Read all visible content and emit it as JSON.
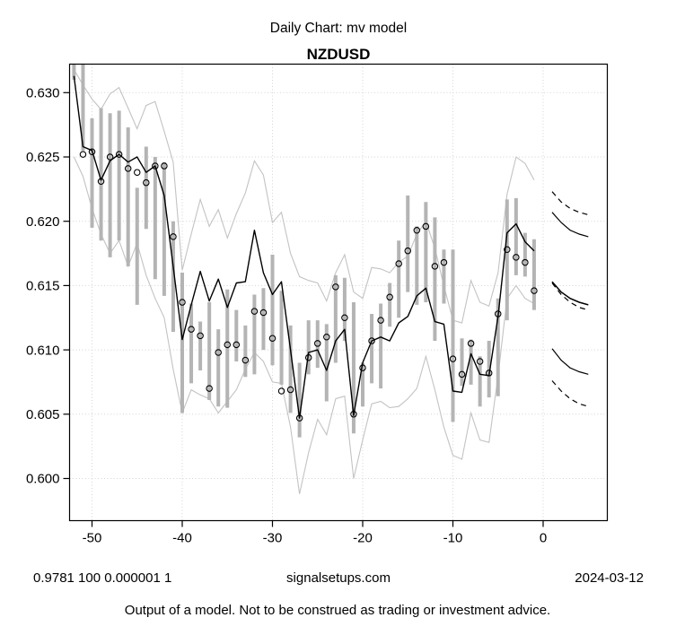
{
  "header": {
    "title": "Daily Chart: mv model",
    "symbol": "NZDUSD"
  },
  "footer": {
    "left": "0.9781 100 0.000001 1",
    "center": "signalsetups.com",
    "right": "2024-03-12",
    "disclaimer": "Output of a model.  Not to be construed as trading or investment advice."
  },
  "colors": {
    "background": "#ffffff",
    "bar": "#b4b4b4",
    "envelope": "#c3c3c3",
    "grid": "#d4d4d4",
    "line": "#000000"
  },
  "chart_data": {
    "type": "line",
    "title": "Daily Chart: mv model",
    "subtitle": "NZDUSD",
    "xlabel": "",
    "ylabel": "",
    "grid": "dotted",
    "xlim": [
      -52.6,
      7.1
    ],
    "ylim": [
      0.5967,
      0.6322
    ],
    "x_ticks": [
      -50,
      -40,
      -30,
      -20,
      -10,
      0
    ],
    "x_tick_labels": [
      "-50",
      "-40",
      "-30",
      "-20",
      "-10",
      "0"
    ],
    "y_ticks": [
      0.6,
      0.605,
      0.61,
      0.615,
      0.62,
      0.625,
      0.63
    ],
    "y_tick_labels": [
      "0.600",
      "0.605",
      "0.610",
      "0.615",
      "0.620",
      "0.625",
      "0.630"
    ],
    "t_start": -52,
    "series": {
      "dots": [
        null,
        0.6252,
        0.6254,
        0.6231,
        0.625,
        0.6252,
        0.6241,
        0.6238,
        0.623,
        0.6243,
        0.6243,
        0.6188,
        0.6137,
        0.6116,
        0.6111,
        0.607,
        0.6098,
        0.6104,
        0.6104,
        0.6092,
        0.613,
        0.6129,
        0.6109,
        0.6068,
        0.6069,
        0.6047,
        0.6094,
        0.6105,
        0.611,
        0.6149,
        0.6125,
        0.605,
        0.6086,
        0.6107,
        0.6123,
        0.6141,
        0.6167,
        0.6177,
        0.6193,
        0.6196,
        0.6165,
        0.6168,
        0.6093,
        0.6081,
        0.6105,
        0.6091,
        0.6082,
        0.6128,
        0.6178,
        0.6172,
        0.6168,
        0.6146
      ],
      "model": [
        0.6313,
        0.6258,
        0.6255,
        0.6232,
        0.6247,
        0.6252,
        0.6246,
        0.625,
        0.6238,
        0.6243,
        0.622,
        0.6165,
        0.6108,
        0.6135,
        0.6161,
        0.6138,
        0.6155,
        0.6133,
        0.6152,
        0.6153,
        0.6193,
        0.616,
        0.6143,
        0.6153,
        0.61,
        0.6047,
        0.6098,
        0.61,
        0.6084,
        0.6107,
        0.6116,
        0.6049,
        0.609,
        0.6107,
        0.611,
        0.6107,
        0.6121,
        0.6126,
        0.6142,
        0.6148,
        0.6122,
        0.612,
        0.6068,
        0.6067,
        0.6097,
        0.6081,
        0.608,
        0.6126,
        0.6191,
        0.6198,
        0.6184,
        0.6177
      ],
      "upper_envelope": [
        0.6318,
        0.6306,
        0.6295,
        0.6287,
        0.6299,
        0.6304,
        0.6288,
        0.6272,
        0.629,
        0.6293,
        0.627,
        0.6246,
        0.6162,
        0.619,
        0.6217,
        0.6196,
        0.6209,
        0.6187,
        0.6206,
        0.6222,
        0.6247,
        0.6236,
        0.6199,
        0.6207,
        0.6175,
        0.6157,
        0.6154,
        0.6152,
        0.6138,
        0.616,
        0.6174,
        0.6145,
        0.614,
        0.6164,
        0.6163,
        0.616,
        0.6168,
        0.6173,
        0.619,
        0.62,
        0.6179,
        0.615,
        0.6123,
        0.6121,
        0.6154,
        0.6137,
        0.6134,
        0.616,
        0.6221,
        0.625,
        0.6245,
        0.6232
      ],
      "lower_envelope": [
        0.625,
        0.6235,
        0.621,
        0.619,
        0.6175,
        0.6185,
        0.6165,
        0.6183,
        0.6158,
        0.614,
        0.6125,
        0.6085,
        0.6051,
        0.6069,
        0.6065,
        0.6062,
        0.6051,
        0.606,
        0.6069,
        0.6085,
        0.6098,
        0.6091,
        0.6075,
        0.6074,
        0.604,
        0.5988,
        0.602,
        0.6046,
        0.6034,
        0.6062,
        0.6064,
        0.6,
        0.603,
        0.6058,
        0.606,
        0.6055,
        0.6056,
        0.6062,
        0.607,
        0.6095,
        0.6069,
        0.604,
        0.6018,
        0.6015,
        0.6051,
        0.603,
        0.6028,
        0.608,
        0.614,
        0.615,
        0.614,
        0.6136
      ],
      "bar_low": [
        0.631,
        0.6255,
        0.6195,
        0.6185,
        0.6172,
        0.6185,
        0.6165,
        0.6135,
        0.6194,
        0.6155,
        0.6142,
        0.6114,
        0.6051,
        0.6074,
        0.6084,
        0.6061,
        0.6056,
        0.6055,
        0.6091,
        0.6079,
        0.6081,
        0.61,
        0.6088,
        0.6073,
        0.6051,
        0.6032,
        0.6081,
        0.6086,
        0.606,
        0.609,
        0.6107,
        0.6035,
        0.6056,
        0.6074,
        0.607,
        0.6118,
        0.6125,
        0.6145,
        0.6135,
        0.6137,
        0.6107,
        0.6136,
        0.6044,
        0.6072,
        0.6073,
        0.6056,
        0.6063,
        0.6064,
        0.6123,
        0.6158,
        0.6157,
        0.6131
      ],
      "bar_high": [
        0.6325,
        0.6325,
        0.628,
        0.6288,
        0.6284,
        0.6286,
        0.6273,
        0.6226,
        0.6258,
        0.625,
        0.6246,
        0.62,
        0.616,
        0.6136,
        0.6122,
        0.6137,
        0.6116,
        0.6147,
        0.6131,
        0.6119,
        0.6143,
        0.6148,
        0.6174,
        0.6146,
        0.6119,
        0.609,
        0.6123,
        0.6123,
        0.612,
        0.6158,
        0.6156,
        0.6137,
        0.609,
        0.6128,
        0.6136,
        0.6152,
        0.6185,
        0.622,
        0.6196,
        0.6215,
        0.6203,
        0.6178,
        0.6178,
        0.6109,
        0.6108,
        0.6095,
        0.6107,
        0.614,
        0.6217,
        0.6218,
        0.6191,
        0.6186
      ]
    },
    "forecast": {
      "t": [
        1,
        2,
        3,
        4,
        5
      ],
      "upper_dashed": [
        0.6223,
        0.6215,
        0.621,
        0.6207,
        0.6205
      ],
      "upper_solid": [
        0.6207,
        0.6199,
        0.6193,
        0.619,
        0.6188
      ],
      "mid_solid": [
        0.6153,
        0.6145,
        0.614,
        0.6137,
        0.6135
      ],
      "mid_dashed": [
        0.6152,
        0.6143,
        0.6137,
        0.6133,
        0.6131
      ],
      "lower_solid": [
        0.6101,
        0.6092,
        0.6086,
        0.6083,
        0.6081
      ],
      "lower_dashed": [
        0.6076,
        0.6068,
        0.6062,
        0.6058,
        0.6056
      ]
    },
    "legend": null
  }
}
